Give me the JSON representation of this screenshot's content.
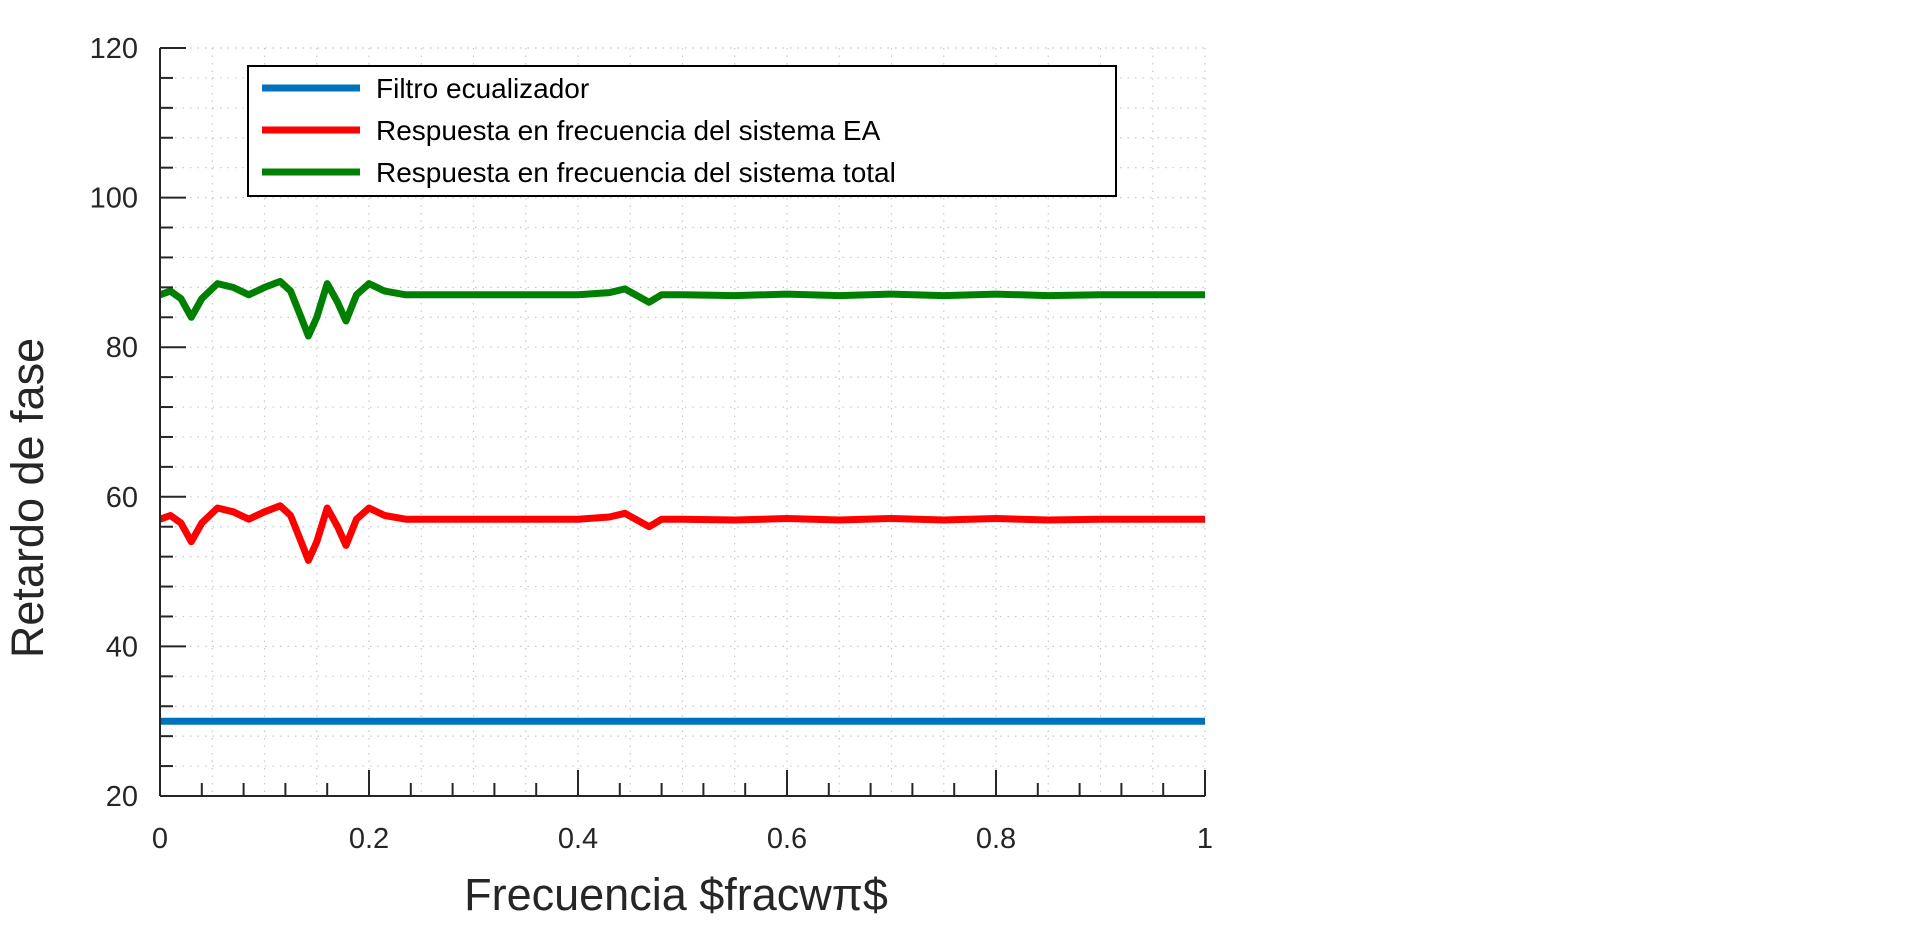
{
  "chart_data": {
    "type": "line",
    "title": "",
    "xlabel": "Frecuencia $fracwπ$",
    "ylabel": "Retardo de fase",
    "xlim": [
      0,
      1
    ],
    "ylim": [
      20,
      120
    ],
    "x_ticks": [
      "0",
      "0.2",
      "0.4",
      "0.6",
      "0.8",
      "1"
    ],
    "y_ticks": [
      "20",
      "40",
      "60",
      "80",
      "100",
      "120"
    ],
    "grid": true,
    "legend_position": "top-left",
    "series": [
      {
        "name": "Filtro ecualizador",
        "color": "#0072bd",
        "x": [
          0,
          1
        ],
        "y": [
          30,
          30
        ]
      },
      {
        "name": "Respuesta en frecuencia del sistema EA",
        "color": "#ff0000",
        "x": [
          0,
          0.01,
          0.02,
          0.03,
          0.04,
          0.055,
          0.07,
          0.085,
          0.1,
          0.115,
          0.125,
          0.135,
          0.142,
          0.15,
          0.16,
          0.17,
          0.178,
          0.188,
          0.2,
          0.215,
          0.235,
          0.3,
          0.4,
          0.43,
          0.445,
          0.455,
          0.468,
          0.48,
          0.5,
          0.55,
          0.6,
          0.65,
          0.7,
          0.75,
          0.8,
          0.85,
          0.9,
          0.95,
          1.0
        ],
        "y": [
          57,
          57.5,
          56.5,
          54,
          56.5,
          58.5,
          58,
          57,
          58,
          58.8,
          57.5,
          54,
          51.5,
          54,
          58.5,
          56,
          53.5,
          57,
          58.5,
          57.5,
          57,
          57,
          57,
          57.3,
          57.8,
          57,
          56,
          57,
          57,
          56.9,
          57.1,
          56.9,
          57.1,
          56.9,
          57.1,
          56.9,
          57,
          57,
          57
        ]
      },
      {
        "name": "Respuesta en frecuencia del sistema total",
        "color": "#008000",
        "x": [
          0,
          0.01,
          0.02,
          0.03,
          0.04,
          0.055,
          0.07,
          0.085,
          0.1,
          0.115,
          0.125,
          0.135,
          0.142,
          0.15,
          0.16,
          0.17,
          0.178,
          0.188,
          0.2,
          0.215,
          0.235,
          0.3,
          0.4,
          0.43,
          0.445,
          0.455,
          0.468,
          0.48,
          0.5,
          0.55,
          0.6,
          0.65,
          0.7,
          0.75,
          0.8,
          0.85,
          0.9,
          0.95,
          1.0
        ],
        "y": [
          87,
          87.5,
          86.5,
          84,
          86.5,
          88.5,
          88,
          87,
          88,
          88.8,
          87.5,
          84,
          81.5,
          84,
          88.5,
          86,
          83.5,
          87,
          88.5,
          87.5,
          87,
          87,
          87,
          87.3,
          87.8,
          87,
          86,
          87,
          87,
          86.9,
          87.1,
          86.9,
          87.1,
          86.9,
          87.1,
          86.9,
          87,
          87,
          87
        ]
      }
    ]
  }
}
